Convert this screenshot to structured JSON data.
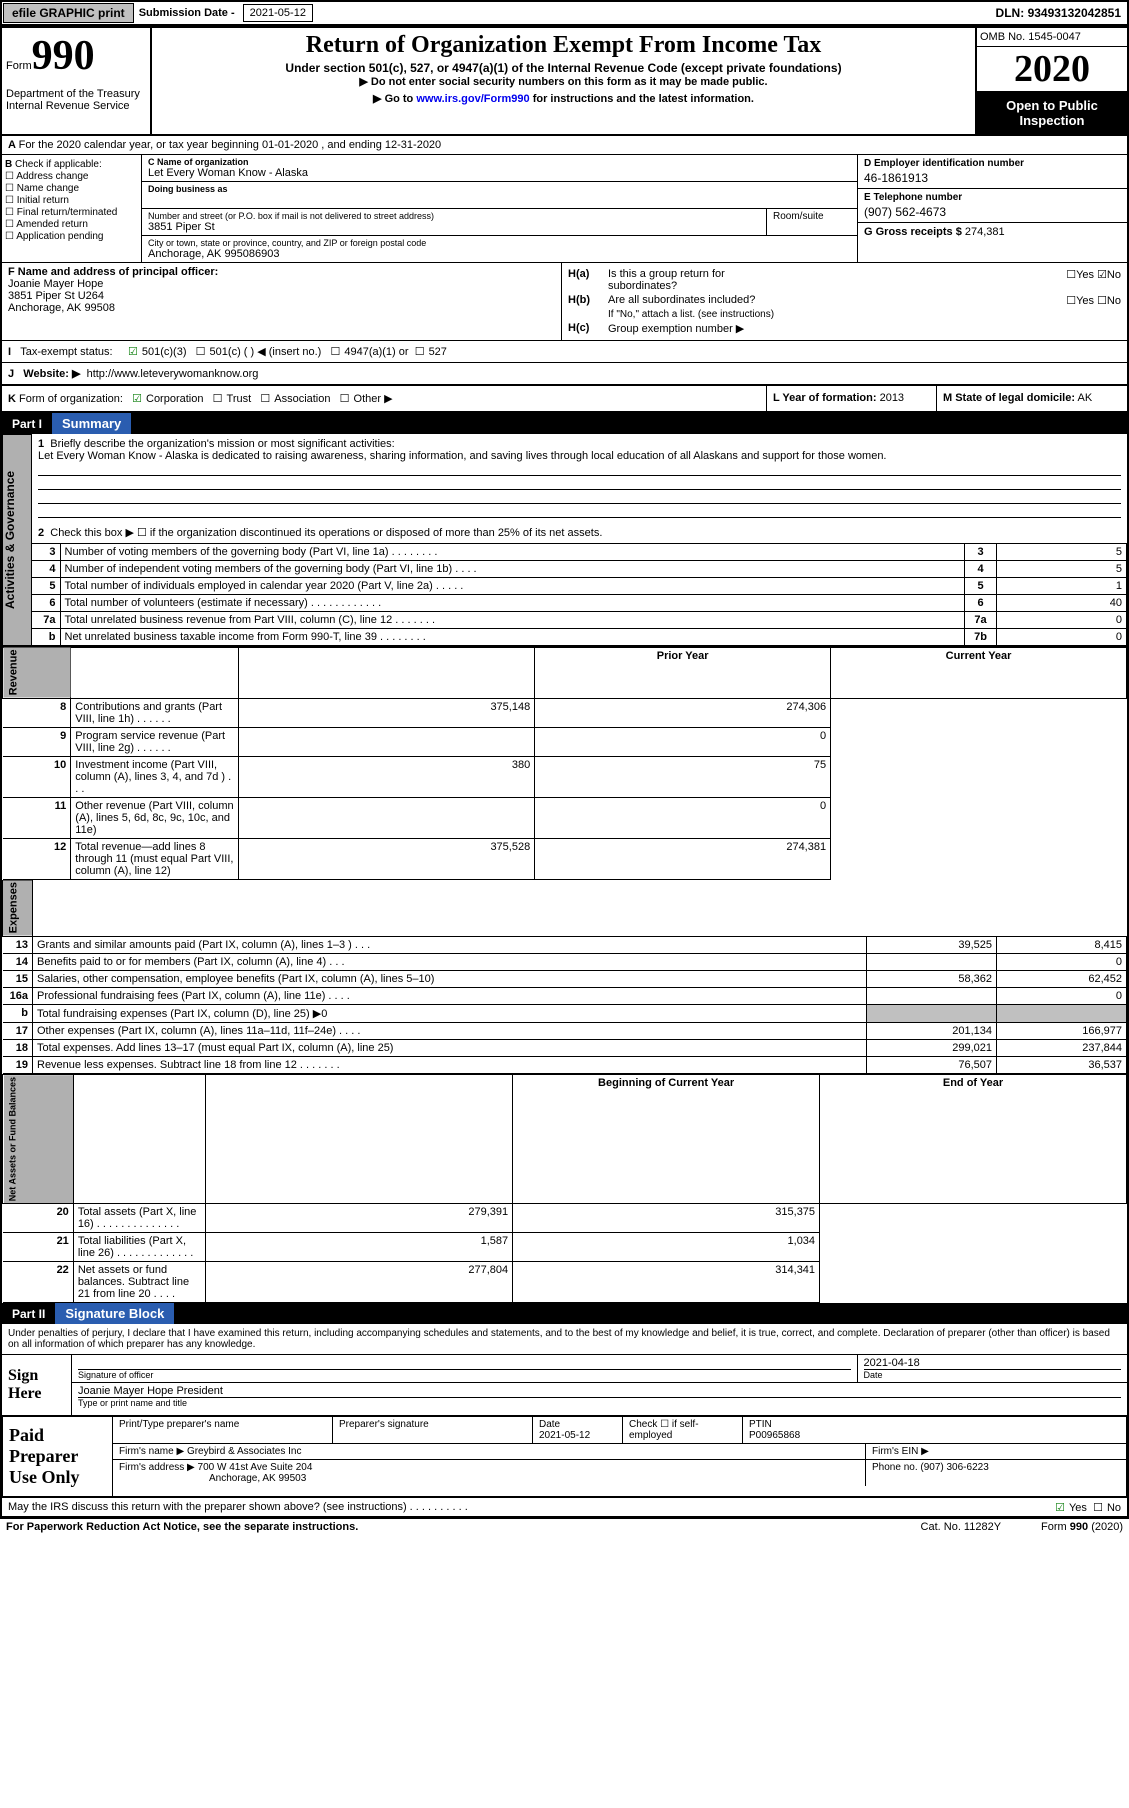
{
  "header": {
    "efile": "efile GRAPHIC print",
    "sub_label": "Submission Date",
    "sub_date": "2021-05-12",
    "dln_label": "DLN:",
    "dln": "93493132042851"
  },
  "top": {
    "form_word": "Form",
    "form_num": "990",
    "dept": "Department of the Treasury\nInternal Revenue Service",
    "title": "Return of Organization Exempt From Income Tax",
    "subtitle": "Under section 501(c), 527, or 4947(a)(1) of the Internal Revenue Code (except private foundations)",
    "warn": "Do not enter social security numbers on this form as it may be made public.",
    "instr_pre": "Go to ",
    "instr_link": "www.irs.gov/Form990",
    "instr_post": " for instructions and the latest information.",
    "omb": "OMB No. 1545-0047",
    "year": "2020",
    "inspect": "Open to Public Inspection"
  },
  "a": {
    "text": "For the 2020 calendar year, or tax year beginning 01-01-2020   , and ending 12-31-2020"
  },
  "b": {
    "header": "Check if applicable:",
    "items": [
      "Address change",
      "Name change",
      "Initial return",
      "Final return/terminated",
      "Amended return",
      "Application pending"
    ]
  },
  "c": {
    "name_lbl": "C Name of organization",
    "name": "Let Every Woman Know - Alaska",
    "dba_lbl": "Doing business as",
    "street_lbl": "Number and street (or P.O. box if mail is not delivered to street address)",
    "room_lbl": "Room/suite",
    "street": "3851 Piper St",
    "city_lbl": "City or town, state or province, country, and ZIP or foreign postal code",
    "city": "Anchorage, AK  995086903"
  },
  "d": {
    "lbl": "D Employer identification number",
    "val": "46-1861913"
  },
  "e": {
    "lbl": "E Telephone number",
    "val": "(907) 562-4673"
  },
  "g": {
    "lbl": "G Gross receipts $",
    "val": "274,381"
  },
  "f": {
    "lbl": "F  Name and address of principal officer:",
    "name": "Joanie Mayer Hope",
    "addr1": "3851 Piper St U264",
    "addr2": "Anchorage, AK  99508"
  },
  "h": {
    "a": "Is this a group return for",
    "a2": "subordinates?",
    "b": "Are all subordinates included?",
    "note": "If \"No,\" attach a list. (see instructions)",
    "c": "Group exemption number ▶"
  },
  "i": {
    "lbl": "Tax-exempt status:",
    "o1": "501(c)(3)",
    "o2": "501(c) (  ) ◀ (insert no.)",
    "o3": "4947(a)(1) or",
    "o4": "527"
  },
  "j": {
    "lbl": "Website: ▶",
    "val": "http://www.leteverywomanknow.org"
  },
  "k": {
    "lbl": "Form of organization:",
    "o1": "Corporation",
    "o2": "Trust",
    "o3": "Association",
    "o4": "Other ▶"
  },
  "l": {
    "lbl": "L Year of formation:",
    "val": "2013"
  },
  "m": {
    "lbl": "M State of legal domicile:",
    "val": "AK"
  },
  "part1": {
    "num": "Part I",
    "title": "Summary"
  },
  "summary": {
    "l1": "Briefly describe the organization's mission or most significant activities:",
    "mission": "Let Every Woman Know - Alaska is dedicated to raising awareness, sharing information, and saving lives through local education of all Alaskans and support for those women.",
    "l2": "Check this box ▶ ☐  if the organization discontinued its operations or disposed of more than 25% of its net assets.",
    "labels": {
      "activities": "Activities & Governance",
      "revenue": "Revenue",
      "expenses": "Expenses",
      "netassets": "Net Assets or Fund Balances"
    }
  },
  "gov_rows": [
    {
      "n": "3",
      "d": "Number of voting members of the governing body (Part VI, line 1a)   .   .   .   .   .   .   .   .",
      "b": "3",
      "v": "5"
    },
    {
      "n": "4",
      "d": "Number of independent voting members of the governing body (Part VI, line 1b)   .   .   .   .",
      "b": "4",
      "v": "5"
    },
    {
      "n": "5",
      "d": "Total number of individuals employed in calendar year 2020 (Part V, line 2a)   .   .   .   .   .",
      "b": "5",
      "v": "1"
    },
    {
      "n": "6",
      "d": "Total number of volunteers (estimate if necessary)   .   .   .   .   .   .   .   .   .   .   .   .",
      "b": "6",
      "v": "40"
    },
    {
      "n": "7a",
      "d": "Total unrelated business revenue from Part VIII, column (C), line 12   .   .   .   .   .   .   .",
      "b": "7a",
      "v": "0"
    },
    {
      "n": "b",
      "d": "Net unrelated business taxable income from Form 990-T, line 39   .   .   .   .   .   .   .   .",
      "b": "7b",
      "v": "0"
    }
  ],
  "two_col_hdr": {
    "py": "Prior Year",
    "cy": "Current Year"
  },
  "rev_rows": [
    {
      "n": "8",
      "d": "Contributions and grants (Part VIII, line 1h)   .   .   .   .   .   .",
      "py": "375,148",
      "cy": "274,306"
    },
    {
      "n": "9",
      "d": "Program service revenue (Part VIII, line 2g)   .   .   .   .   .   .",
      "py": "",
      "cy": "0"
    },
    {
      "n": "10",
      "d": "Investment income (Part VIII, column (A), lines 3, 4, and 7d )   .   .   .",
      "py": "380",
      "cy": "75"
    },
    {
      "n": "11",
      "d": "Other revenue (Part VIII, column (A), lines 5, 6d, 8c, 9c, 10c, and 11e)",
      "py": "",
      "cy": "0"
    },
    {
      "n": "12",
      "d": "Total revenue—add lines 8 through 11 (must equal Part VIII, column (A), line 12)",
      "py": "375,528",
      "cy": "274,381"
    }
  ],
  "exp_rows": [
    {
      "n": "13",
      "d": "Grants and similar amounts paid (Part IX, column (A), lines 1–3 )   .   .   .",
      "py": "39,525",
      "cy": "8,415"
    },
    {
      "n": "14",
      "d": "Benefits paid to or for members (Part IX, column (A), line 4)   .   .   .",
      "py": "",
      "cy": "0"
    },
    {
      "n": "15",
      "d": "Salaries, other compensation, employee benefits (Part IX, column (A), lines 5–10)",
      "py": "58,362",
      "cy": "62,452"
    },
    {
      "n": "16a",
      "d": "Professional fundraising fees (Part IX, column (A), line 11e)   .   .   .   .",
      "py": "",
      "cy": "0"
    },
    {
      "n": "b",
      "d": "Total fundraising expenses (Part IX, column (D), line 25) ▶0",
      "py": "grey",
      "cy": "grey"
    },
    {
      "n": "17",
      "d": "Other expenses (Part IX, column (A), lines 11a–11d, 11f–24e)   .   .   .   .",
      "py": "201,134",
      "cy": "166,977"
    },
    {
      "n": "18",
      "d": "Total expenses. Add lines 13–17 (must equal Part IX, column (A), line 25)",
      "py": "299,021",
      "cy": "237,844"
    },
    {
      "n": "19",
      "d": "Revenue less expenses. Subtract line 18 from line 12 .   .   .   .   .   .   .",
      "py": "76,507",
      "cy": "36,537"
    }
  ],
  "na_hdr": {
    "b": "Beginning of Current Year",
    "e": "End of Year"
  },
  "na_rows": [
    {
      "n": "20",
      "d": "Total assets (Part X, line 16)  .   .   .   .   .   .   .   .   .   .   .   .   .   .",
      "py": "279,391",
      "cy": "315,375"
    },
    {
      "n": "21",
      "d": "Total liabilities (Part X, line 26)  .   .   .   .   .   .   .   .   .   .   .   .   .",
      "py": "1,587",
      "cy": "1,034"
    },
    {
      "n": "22",
      "d": "Net assets or fund balances. Subtract line 21 from line 20  .   .   .   .",
      "py": "277,804",
      "cy": "314,341"
    }
  ],
  "part2": {
    "num": "Part II",
    "title": "Signature Block"
  },
  "sig": {
    "decl": "Under penalties of perjury, I declare that I have examined this return, including accompanying schedules and statements, and to the best of my knowledge and belief, it is true, correct, and complete. Declaration of preparer (other than officer) is based on all information of which preparer has any knowledge.",
    "sign_here": "Sign Here",
    "sig_of": "Signature of officer",
    "date_lbl": "Date",
    "date": "2021-04-18",
    "name": "Joanie Mayer Hope  President",
    "type_lbl": "Type or print name and title"
  },
  "prep": {
    "lbl": "Paid Preparer Use Only",
    "r1": {
      "c1": "Print/Type preparer's name",
      "c2": "Preparer's signature",
      "c3": "Date",
      "c3v": "2021-05-12",
      "c4": "Check ☐  if self-employed",
      "c5": "PTIN",
      "c5v": "P00965868"
    },
    "r2": {
      "lbl": "Firm's name      ▶",
      "val": "Greybird & Associates Inc",
      "ein": "Firm's EIN ▶"
    },
    "r3": {
      "lbl": "Firm's address ▶",
      "val": "700 W 41st Ave Suite 204",
      "val2": "Anchorage, AK  99503",
      "ph": "Phone no. (907) 306-6223"
    }
  },
  "discuss": {
    "q": "May the IRS discuss this return with the preparer shown above? (see instructions)   .   .   .   .   .   .   .   .   .   .",
    "yes": "Yes",
    "no": "No"
  },
  "footer": {
    "f1": "For Paperwork Reduction Act Notice, see the separate instructions.",
    "f2": "Cat. No. 11282Y",
    "f3": "Form 990 (2020)"
  },
  "colors": {
    "part_bg": "#2a5db0"
  }
}
